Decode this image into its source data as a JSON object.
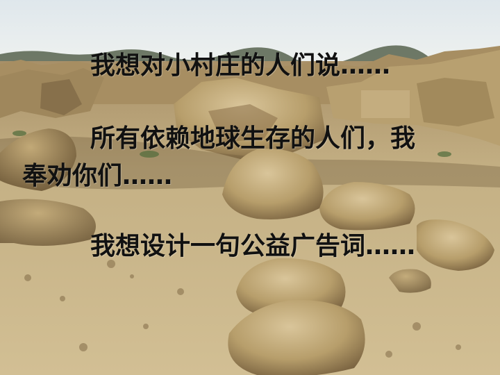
{
  "text": {
    "line1": "我想对小村庄的人们说……",
    "line2": "所有依赖地球生存的人们，我",
    "line3": "奉劝你们……",
    "line4": "我想设计一句公益广告词……"
  },
  "colors": {
    "text": "#111111",
    "sky": "#e4ebee",
    "earth": "#c9b98f",
    "ruin": "#b29a67",
    "shadow": "#6e5a3a"
  }
}
